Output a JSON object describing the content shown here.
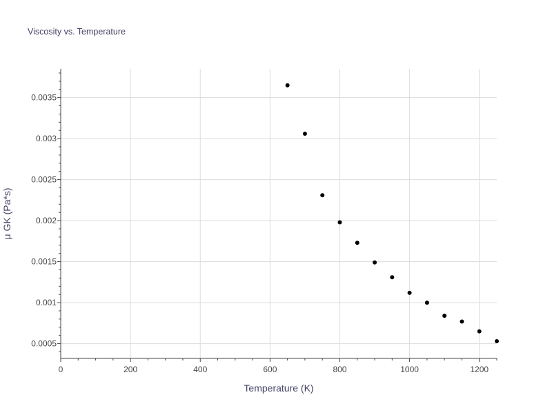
{
  "chart_data": {
    "type": "scatter",
    "title": "Viscosity vs. Temperature",
    "xlabel": "Temperature (K)",
    "ylabel": "μ GK (Pa*s)",
    "xlim": [
      0,
      1250
    ],
    "ylim": [
      0.00032,
      0.00385
    ],
    "grid": true,
    "legend": "none",
    "x_ticks": [
      0,
      200,
      400,
      600,
      800,
      1000,
      1200
    ],
    "x_tick_labels": [
      "0",
      "200",
      "400",
      "600",
      "800",
      "1000",
      "1200"
    ],
    "y_ticks": [
      0.0005,
      0.001,
      0.0015,
      0.002,
      0.0025,
      0.003,
      0.0035
    ],
    "y_tick_labels": [
      "0.0005",
      "0.001",
      "0.0015",
      "0.002",
      "0.0025",
      "0.003",
      "0.0035"
    ],
    "marker_color": "#000000",
    "grid_color": "#dcdcdc",
    "axis_color": "#444444",
    "label_color": "#444466",
    "series": [
      {
        "x": [
          650,
          700,
          750,
          800,
          850,
          900,
          950,
          1000,
          1050,
          1100,
          1150,
          1200,
          1250
        ],
        "y": [
          0.00365,
          0.00306,
          0.00231,
          0.00198,
          0.00173,
          0.00149,
          0.00131,
          0.00112,
          0.001,
          0.00084,
          0.00077,
          0.00065,
          0.00053
        ]
      }
    ]
  }
}
